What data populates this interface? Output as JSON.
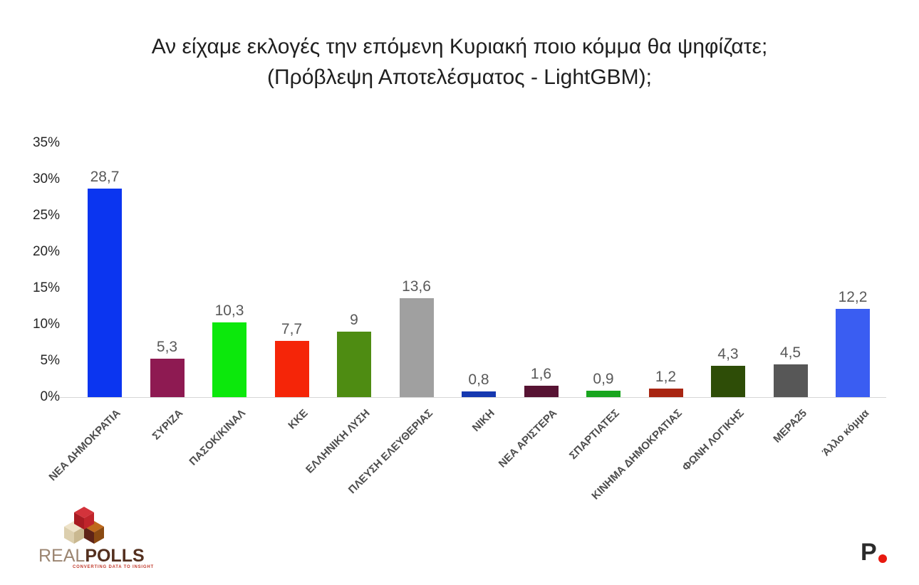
{
  "header": {
    "line1": "Αν είχαμε εκλογές την επόμενη Κυριακή ποιο κόμμα θα ψηφίζατε;",
    "line2": "(Πρόβλεψη Αποτελέσματος - LightGBM);"
  },
  "chart_data": {
    "type": "bar",
    "title": "Αν είχαμε εκλογές την επόμενη Κυριακή ποιο κόμμα θα ψηφίζατε; (Πρόβλεψη Αποτελέσματος - LightGBM);",
    "categories": [
      "ΝΕΑ ΔΗΜΟΚΡΑΤΙΑ",
      "ΣΥΡΙΖΑ",
      "ΠΑΣΟΚ/ΚΙΝΑΛ",
      "ΚΚΕ",
      "ΕΛΛΗΝΙΚΗ ΛΥΣΗ",
      "ΠΛΕΥΣΗ ΕΛΕΥΘΕΡΙΑΣ",
      "ΝΙΚΗ",
      "ΝΕΑ ΑΡΙΣΤΕΡΑ",
      "ΣΠΑΡΤΙΑΤΕΣ",
      "ΚΙΝΗΜΑ ΔΗΜΟΚΡΑΤΙΑΣ",
      "ΦΩΝΗ ΛΟΓΙΚΗΣ",
      "ΜΕΡΑ25",
      "Άλλο κόμμα"
    ],
    "values": [
      28.7,
      5.3,
      10.3,
      7.7,
      9,
      13.6,
      0.8,
      1.6,
      0.9,
      1.2,
      4.3,
      4.5,
      12.2
    ],
    "value_labels": [
      "28,7",
      "5,3",
      "10,3",
      "7,7",
      "9",
      "13,6",
      "0,8",
      "1,6",
      "0,9",
      "1,2",
      "4,3",
      "4,5",
      "12,2"
    ],
    "bar_colors": [
      "#0b35f0",
      "#8e1a52",
      "#0ce80c",
      "#f52508",
      "#4e8c12",
      "#a0a0a0",
      "#1538b0",
      "#571333",
      "#18a51e",
      "#a82512",
      "#2e4d07",
      "#575757",
      "#3a5df2"
    ],
    "y_ticks": [
      "0%",
      "5%",
      "10%",
      "15%",
      "20%",
      "25%",
      "30%",
      "35%"
    ],
    "ylim": [
      0,
      35
    ],
    "xlabel": "",
    "ylabel": "",
    "grid": false,
    "legend": "none",
    "decimal_separator": ","
  },
  "footer": {
    "realpolls_logo": {
      "brand_real": "REAL",
      "brand_polls": "POLLS",
      "tagline": "CONVERTING DATA TO INSIGHT",
      "cube_colors": {
        "red_top": "#d3333b",
        "red_left": "#a81b22",
        "red_right": "#c0242b",
        "tan_top": "#eee3c9",
        "tan_left": "#dccfae",
        "tan_right": "#c9b890",
        "brown_top": "#bf6a1c",
        "brown_left": "#5e2317",
        "brown_right": "#8a4a12"
      }
    },
    "p_logo": {
      "letter": "P",
      "dot_color": "#e8190f"
    }
  },
  "style_colors": {
    "title_text": "#1f1f1f",
    "axis_text": "#262626",
    "value_text": "#595959",
    "category_text": "#4d4d4d",
    "baseline": "#d6d6d6",
    "background": "#ffffff"
  }
}
